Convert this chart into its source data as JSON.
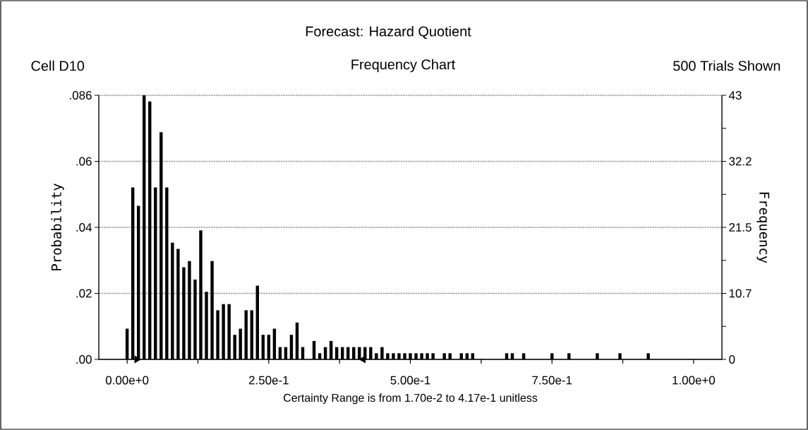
{
  "chart_data": {
    "type": "histogram",
    "title": "Forecast: Hazard Quotient",
    "subtitle": "Frequency Chart",
    "annotations": [
      "Cell D10",
      "500 Trials Shown"
    ],
    "xlabel": "Certainty Range is from 1.70e-2 to 4.17e-1  unitless",
    "ylabel": "Probability",
    "y2label": "Frequency",
    "bins": [
      -0.005,
      0.005,
      0.015,
      0.025,
      0.035,
      0.045,
      0.055,
      0.065,
      0.075,
      0.085,
      0.095,
      0.105,
      0.115,
      0.125,
      0.135,
      0.145,
      0.155,
      0.165,
      0.175,
      0.185,
      0.195,
      0.205,
      0.215,
      0.225,
      0.235,
      0.245,
      0.255,
      0.265,
      0.275,
      0.285,
      0.295,
      0.305,
      0.315,
      0.325,
      0.335,
      0.345,
      0.355,
      0.365,
      0.375,
      0.385,
      0.395,
      0.405,
      0.415,
      0.425,
      0.435,
      0.445,
      0.455,
      0.465,
      0.475,
      0.485,
      0.495,
      0.505,
      0.515,
      0.525,
      0.535,
      0.545,
      0.555,
      0.565,
      0.575,
      0.585,
      0.595,
      0.605,
      0.615,
      0.625,
      0.635,
      0.645,
      0.655,
      0.665,
      0.675,
      0.685,
      0.695,
      0.705,
      0.715,
      0.725,
      0.735,
      0.745,
      0.755,
      0.765,
      0.775,
      0.785,
      0.795,
      0.805,
      0.815,
      0.825,
      0.835,
      0.845,
      0.855,
      0.865,
      0.875,
      0.885,
      0.895,
      0.905,
      0.915,
      0.925
    ],
    "values": [
      0.01,
      0.056,
      0.05,
      0.086,
      0.084,
      0.056,
      0.074,
      0.056,
      0.038,
      0.036,
      0.03,
      0.032,
      0.026,
      0.042,
      0.022,
      0.032,
      0.016,
      0.018,
      0.018,
      0.008,
      0.01,
      0.016,
      0.016,
      0.024,
      0.008,
      0.008,
      0.01,
      0.004,
      0.004,
      0.008,
      0.012,
      0.004,
      0,
      0.006,
      0.002,
      0.004,
      0.006,
      0.004,
      0.004,
      0.004,
      0.004,
      0.004,
      0.004,
      0.004,
      0.002,
      0.004,
      0.002,
      0.002,
      0.002,
      0.002,
      0.002,
      0.002,
      0.002,
      0.002,
      0.002,
      0,
      0.002,
      0.002,
      0,
      0.002,
      0.002,
      0.002,
      0,
      0,
      0,
      0,
      0,
      0.002,
      0.002,
      0,
      0.002,
      0,
      0,
      0,
      0,
      0.002,
      0,
      0,
      0.002,
      0,
      0,
      0,
      0,
      0.002,
      0,
      0,
      0,
      0.002,
      0,
      0,
      0,
      0,
      0.002
    ],
    "color": "#000000",
    "xlim": [
      -0.05,
      1.05
    ],
    "xticks": [
      {
        "value": 0,
        "label": "0.00e+0"
      },
      {
        "value": 0.125,
        "label": null
      },
      {
        "value": 0.25,
        "label": "2.50e-1"
      },
      {
        "value": 0.375,
        "label": null
      },
      {
        "value": 0.5,
        "label": "5.00e-1"
      },
      {
        "value": 0.625,
        "label": null
      },
      {
        "value": 0.75,
        "label": "7.50e-1"
      },
      {
        "value": 0.875,
        "label": null
      },
      {
        "value": 1.0,
        "label": "1.00e+0"
      }
    ],
    "ylim": [
      0,
      0.086
    ],
    "yticks": [
      {
        "value": 0,
        "label": ".00"
      },
      {
        "value": 0.0215,
        "label": ".02"
      },
      {
        "value": 0.043,
        "label": ".04"
      },
      {
        "value": 0.0645,
        "label": ".06"
      },
      {
        "value": 0.086,
        "label": ".086"
      }
    ],
    "y2lim": [
      0,
      43
    ],
    "y2ticks": [
      0,
      {
        "value": 5.375,
        "label": null
      },
      {
        "value": 10.75,
        "label": "10.7"
      },
      {
        "value": 16.125,
        "label": null
      },
      {
        "value": 21.5,
        "label": "21.5"
      },
      {
        "value": 26.875,
        "label": null
      },
      {
        "value": 32.25,
        "label": "32.2"
      },
      {
        "value": 37.625,
        "label": null
      },
      {
        "value": 43,
        "label": "43"
      }
    ],
    "series": [
      {
        "type": "scatter",
        "x": [
          0.017,
          0.417
        ],
        "values": [
          0,
          0
        ],
        "color": "#000000"
      }
    ],
    "grid": "y"
  }
}
